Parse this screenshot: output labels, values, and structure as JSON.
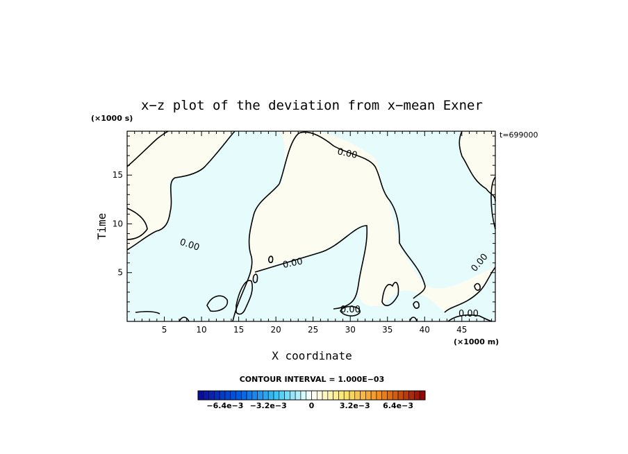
{
  "chart_data": {
    "type": "contour",
    "title": "x−z plot of the deviation from x−mean Exner",
    "xlabel": "X coordinate",
    "ylabel": "Time",
    "x_scale_label": "(×1000 m)",
    "y_scale_label": "(×1000 s)",
    "time_label": "t=699000",
    "xlim": [
      0,
      49.5
    ],
    "ylim": [
      0,
      19.5
    ],
    "xticks": [
      5,
      10,
      15,
      20,
      25,
      30,
      35,
      40,
      45
    ],
    "yticks": [
      5,
      10,
      15
    ],
    "contour_level_labels": [
      "0.00",
      "0.00",
      "0.00",
      "0.00",
      "0.00",
      "0.00"
    ],
    "contour_interval_label": "CONTOUR INTERVAL = 1.000E−03",
    "colorbar": {
      "min": -0.0084,
      "max": 0.0084,
      "step": 0.0004,
      "tick_labels": [
        "−6.4e−3",
        "−3.2e−3",
        "0",
        "3.2e−3",
        "6.4e−3"
      ],
      "tick_values": [
        -0.0064,
        -0.0032,
        0,
        0.0032,
        0.0064
      ]
    },
    "regions": {
      "positive_color": "#fdfcf0",
      "negative_color": "#e6fcfc"
    }
  }
}
